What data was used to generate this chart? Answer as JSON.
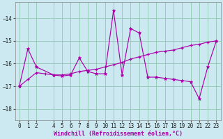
{
  "background_color": "#cce8f0",
  "grid_color": "#99ccbb",
  "line_color": "#aa00aa",
  "marker_star_color": "#aa00aa",
  "marker_plus_color": "#aa00aa",
  "xlabel": "Windchill (Refroidissement éolien,°C)",
  "xlabel_fontsize": 6.0,
  "tick_fontsize": 5.5,
  "ylim": [
    -18.5,
    -13.3
  ],
  "xlim": [
    -0.5,
    23.5
  ],
  "yticks": [
    -18,
    -17,
    -16,
    -15,
    -14
  ],
  "xticks": [
    0,
    1,
    2,
    4,
    5,
    6,
    7,
    8,
    9,
    10,
    11,
    12,
    13,
    14,
    15,
    16,
    17,
    18,
    19,
    20,
    21,
    22,
    23
  ],
  "series1_x": [
    0,
    1,
    2,
    4,
    5,
    6,
    7,
    8,
    9,
    10,
    11,
    12,
    13,
    14,
    15,
    16,
    17,
    18,
    19,
    20,
    21,
    22,
    23
  ],
  "series1_y": [
    -17.0,
    -15.35,
    -16.15,
    -16.5,
    -16.55,
    -16.5,
    -15.75,
    -16.35,
    -16.45,
    -16.45,
    -13.65,
    -16.5,
    -14.45,
    -14.65,
    -16.6,
    -16.6,
    -16.65,
    -16.7,
    -16.75,
    -16.8,
    -17.55,
    -16.15,
    -15.0
  ],
  "series2_x": [
    0,
    1,
    2,
    3,
    4,
    5,
    6,
    7,
    8,
    9,
    10,
    11,
    12,
    13,
    14,
    15,
    16,
    17,
    18,
    19,
    20,
    21,
    22,
    23
  ],
  "series2_y": [
    -17.0,
    -16.7,
    -16.4,
    -16.45,
    -16.5,
    -16.5,
    -16.45,
    -16.35,
    -16.3,
    -16.25,
    -16.15,
    -16.05,
    -15.95,
    -15.8,
    -15.7,
    -15.6,
    -15.5,
    -15.45,
    -15.4,
    -15.3,
    -15.2,
    -15.15,
    -15.05,
    -15.0
  ]
}
